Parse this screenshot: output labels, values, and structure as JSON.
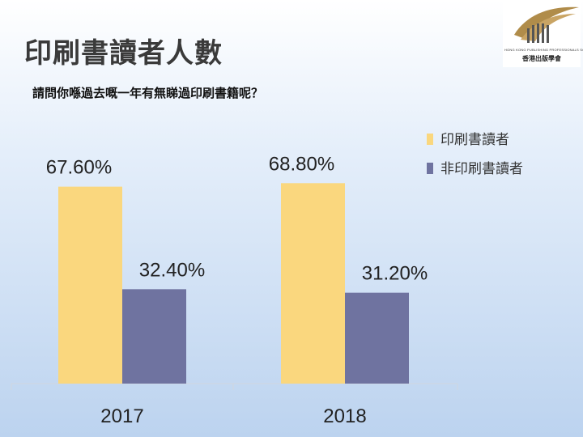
{
  "logo": {
    "org_en": "HONG KONG PUBLISHING PROFESSIONALS SOCIETY",
    "org_zh": "香港出版學會"
  },
  "title": "印刷書讀者人數",
  "subtitle": "請問你喺過去嘅一年有無睇過印刷書籍呢？",
  "chart_data": {
    "type": "bar",
    "categories": [
      "2017",
      "2018"
    ],
    "series": [
      {
        "name": "印刷書讀者",
        "values": [
          67.6,
          68.8
        ],
        "labels": [
          "67.60%",
          "68.80%"
        ],
        "color": "#fad77e"
      },
      {
        "name": "非印刷書讀者",
        "values": [
          32.4,
          31.2
        ],
        "labels": [
          "32.40%",
          "31.20%"
        ],
        "color": "#6f73a0"
      }
    ],
    "ylim": [
      0,
      100
    ],
    "unit": "%",
    "legend": "top-right",
    "grid": false
  }
}
